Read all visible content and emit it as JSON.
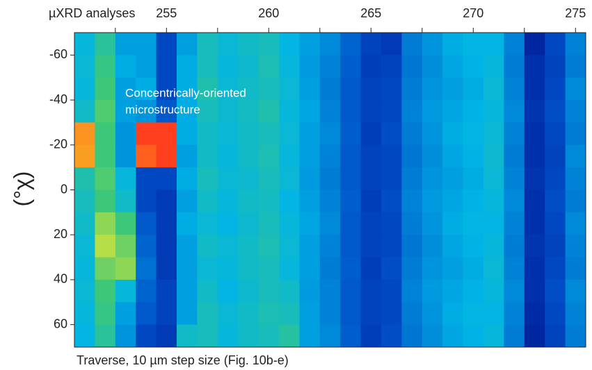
{
  "chart_data": {
    "type": "heatmap",
    "x_label": "µXRD analyses",
    "y_label": "(°χ)",
    "annotation": [
      "Concentrically-oriented",
      "microstructure"
    ],
    "caption": "Traverse, 10 µm step size (Fig. 10b-e)",
    "x": [
      251,
      252,
      253,
      254,
      255,
      256,
      257,
      258,
      259,
      260,
      261,
      262,
      263,
      264,
      265,
      266,
      267,
      268,
      269,
      270,
      271,
      272,
      273,
      274,
      275
    ],
    "y_bins": [
      -70,
      -60,
      -50,
      -40,
      -30,
      -20,
      -10,
      0,
      10,
      20,
      30,
      40,
      50,
      60,
      70
    ],
    "z": [
      [
        35,
        36,
        35,
        38,
        82,
        80,
        42,
        40,
        38,
        36,
        35,
        36,
        35,
        34
      ],
      [
        45,
        48,
        50,
        52,
        50,
        50,
        52,
        50,
        58,
        62,
        55,
        50,
        48,
        45
      ],
      [
        30,
        32,
        30,
        30,
        28,
        28,
        35,
        38,
        50,
        55,
        58,
        35,
        30,
        28
      ],
      [
        30,
        30,
        32,
        28,
        95,
        90,
        15,
        15,
        18,
        20,
        22,
        20,
        18,
        15
      ],
      [
        15,
        15,
        15,
        18,
        95,
        95,
        15,
        12,
        12,
        12,
        12,
        14,
        14,
        12
      ],
      [
        30,
        32,
        32,
        32,
        32,
        30,
        32,
        30,
        32,
        30,
        30,
        30,
        30,
        38
      ],
      [
        40,
        40,
        42,
        40,
        38,
        38,
        40,
        38,
        36,
        38,
        36,
        38,
        40,
        40
      ],
      [
        36,
        35,
        36,
        37,
        36,
        35,
        36,
        35,
        34,
        36,
        35,
        34,
        36,
        35
      ],
      [
        38,
        37,
        38,
        39,
        38,
        38,
        37,
        38,
        37,
        38,
        38,
        37,
        38,
        38
      ],
      [
        40,
        41,
        40,
        42,
        40,
        41,
        40,
        39,
        40,
        41,
        40,
        40,
        41,
        40
      ],
      [
        34,
        35,
        36,
        35,
        36,
        35,
        36,
        34,
        35,
        36,
        35,
        38,
        40,
        44
      ],
      [
        30,
        29,
        30,
        31,
        30,
        30,
        29,
        30,
        31,
        30,
        30,
        29,
        30,
        30
      ],
      [
        26,
        25,
        24,
        25,
        26,
        25,
        24,
        25,
        26,
        25,
        24,
        25,
        25,
        26
      ],
      [
        20,
        19,
        18,
        18,
        19,
        18,
        18,
        19,
        18,
        18,
        19,
        18,
        18,
        19
      ],
      [
        14,
        13,
        14,
        14,
        13,
        14,
        14,
        13,
        14,
        14,
        13,
        14,
        14,
        13
      ],
      [
        12,
        14,
        15,
        15,
        16,
        15,
        15,
        16,
        15,
        15,
        16,
        15,
        15,
        16
      ],
      [
        24,
        23,
        24,
        25,
        24,
        23,
        24,
        25,
        24,
        23,
        24,
        25,
        24,
        23
      ],
      [
        28,
        27,
        28,
        29,
        28,
        27,
        28,
        29,
        28,
        27,
        28,
        29,
        28,
        27
      ],
      [
        32,
        31,
        30,
        31,
        32,
        31,
        30,
        31,
        32,
        31,
        30,
        31,
        32,
        31
      ],
      [
        34,
        33,
        32,
        33,
        34,
        33,
        32,
        33,
        34,
        33,
        32,
        33,
        34,
        33
      ],
      [
        34,
        35,
        36,
        35,
        36,
        37,
        36,
        35,
        34,
        35,
        36,
        35,
        34,
        35
      ],
      [
        25,
        24,
        25,
        26,
        25,
        24,
        25,
        26,
        25,
        24,
        25,
        26,
        25,
        24
      ],
      [
        8,
        10,
        10,
        11,
        10,
        10,
        11,
        10,
        10,
        11,
        10,
        10,
        9,
        8
      ],
      [
        15,
        14,
        15,
        16,
        15,
        14,
        15,
        16,
        15,
        14,
        15,
        16,
        15,
        14
      ],
      [
        25,
        24,
        26,
        25,
        24,
        26,
        25,
        24,
        26,
        25,
        24,
        26,
        25,
        24
      ]
    ],
    "zlim": [
      0,
      100
    ],
    "colormap": [
      "#00007f",
      "#0050c8",
      "#00b4e6",
      "#3cc878",
      "#e6e632",
      "#ff8c1e",
      "#ff1e1e"
    ],
    "xlim": [
      250.5,
      275.5
    ],
    "xticks": [
      255,
      260,
      265,
      270,
      275
    ],
    "xminorticks": [
      252.5,
      257.5,
      262.5,
      267.5,
      272.5
    ],
    "ylim": [
      -70,
      70
    ],
    "yticks": [
      -60,
      -40,
      -20,
      0,
      20,
      40,
      60
    ]
  }
}
